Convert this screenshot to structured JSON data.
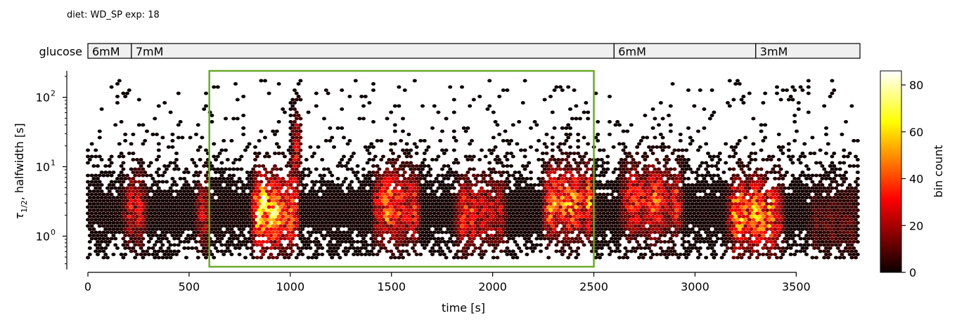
{
  "header": {
    "text": "diet: WD_SP  exp: 18"
  },
  "glucose_bar": {
    "label": "glucose",
    "segments": [
      {
        "label": "6mM",
        "start": 0,
        "end": 215
      },
      {
        "label": "7mM",
        "start": 215,
        "end": 2600
      },
      {
        "label": "6mM",
        "start": 2600,
        "end": 3300
      },
      {
        "label": "3mM",
        "start": 3300,
        "end": 3815
      }
    ],
    "fill_color": "#f0f0f0"
  },
  "chart_data": {
    "type": "heatmap",
    "subtype": "hexbin",
    "xlabel": "time [s]",
    "ylabel": "τ1/2, halfwidth [s]",
    "ylabel_main": "τ",
    "ylabel_sub": "1/2",
    "ylabel_rest": ", halfwidth [s]",
    "xlim": [
      0,
      3815
    ],
    "ylim": [
      0.33,
      240
    ],
    "yscale": "log",
    "xticks": [
      0,
      500,
      1000,
      1500,
      2000,
      2500,
      3000,
      3500
    ],
    "xtick_labels": [
      "0",
      "500",
      "1000",
      "1500",
      "2000",
      "2500",
      "3000",
      "3500"
    ],
    "yticks": [
      1,
      10,
      100
    ],
    "ytick_labels": [
      "10",
      "10",
      "10"
    ],
    "ytick_exponents": [
      "0",
      "1",
      "2"
    ],
    "colormap": "hot",
    "colorbar": {
      "label": "bin count",
      "range": [
        0,
        86
      ],
      "ticks": [
        0,
        20,
        40,
        60,
        80
      ],
      "tick_labels": [
        "0",
        "20",
        "40",
        "60",
        "80"
      ]
    },
    "density_regions": [
      {
        "x": [
          160,
          300
        ],
        "y_center": 2.5,
        "peak": 30
      },
      {
        "x": [
          520,
          620
        ],
        "y_center": 2.2,
        "peak": 25
      },
      {
        "x": [
          800,
          1050
        ],
        "y_center": 2.3,
        "peak": 75
      },
      {
        "x": [
          1000,
          1060
        ],
        "y_center": 20,
        "peak": 45
      },
      {
        "x": [
          1400,
          1650
        ],
        "y_center": 2.8,
        "peak": 55
      },
      {
        "x": [
          1800,
          2080
        ],
        "y_center": 2.2,
        "peak": 40
      },
      {
        "x": [
          2240,
          2520
        ],
        "y_center": 3.0,
        "peak": 60
      },
      {
        "x": [
          2620,
          2950
        ],
        "y_center": 3.2,
        "peak": 45
      },
      {
        "x": [
          3150,
          3450
        ],
        "y_center": 2.0,
        "peak": 65
      },
      {
        "x": [
          3550,
          3815
        ],
        "y_center": 1.5,
        "peak": 12
      }
    ],
    "highlight_box": {
      "x": [
        600,
        2500
      ],
      "y": [
        0.33,
        240
      ],
      "color": "#6aaa2a"
    }
  }
}
